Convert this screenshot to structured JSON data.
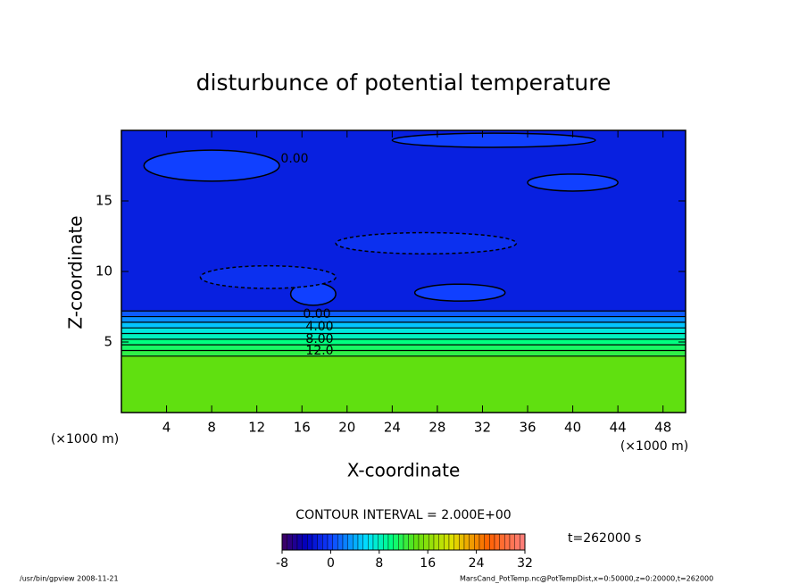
{
  "chart_data": {
    "type": "contour",
    "title": "disturbunce of potential temperature",
    "x_label": "X-coordinate",
    "y_label": "Z-coordinate",
    "x_unit": "(×1000 m)",
    "xlim": [
      0,
      50
    ],
    "xticks": [
      4,
      8,
      12,
      16,
      20,
      24,
      28,
      32,
      36,
      40,
      44,
      48
    ],
    "ylim": [
      0,
      20
    ],
    "yticks": [
      5,
      10,
      15
    ],
    "z_edges": [
      0,
      4.0,
      4.4,
      4.8,
      5.2,
      5.6,
      6.0,
      6.4,
      6.8,
      7.2,
      20
    ],
    "values": [
      14,
      12,
      11,
      10,
      8,
      7,
      5,
      3,
      1,
      -2
    ],
    "patches": [
      {
        "x": 8,
        "z": 17.5,
        "w": 12,
        "h": 2.2,
        "value": 0
      },
      {
        "x": 33,
        "z": 19.3,
        "w": 18,
        "h": 1.0,
        "value": 0
      },
      {
        "x": 30,
        "z": 8.5,
        "w": 8,
        "h": 1.2,
        "value": 0
      },
      {
        "x": 17,
        "z": 8.4,
        "w": 4,
        "h": 1.6,
        "value": 0
      },
      {
        "x": 40,
        "z": 16.3,
        "w": 8,
        "h": 1.2,
        "value": 0
      },
      {
        "x": 13,
        "z": 9.6,
        "w": 12,
        "h": 1.6,
        "value": -1
      },
      {
        "x": 27,
        "z": 12,
        "w": 16,
        "h": 1.5,
        "value": -1
      }
    ],
    "contour_labels": [
      "0.00",
      "0.00",
      "4.00",
      "8.00",
      "12.0"
    ],
    "contour_interval": "CONTOUR INTERVAL = 2.000E+00",
    "clim": [
      -8,
      32
    ],
    "cticks": [
      -8,
      0,
      8,
      16,
      24,
      32
    ],
    "time_label": "t=262000 s",
    "footer_left": "/usr/bin/gpview   2008-11-21",
    "footer_right": "MarsCand_PotTemp.nc@PotTempDist,x=0:50000,z=0:20000,t=262000"
  }
}
